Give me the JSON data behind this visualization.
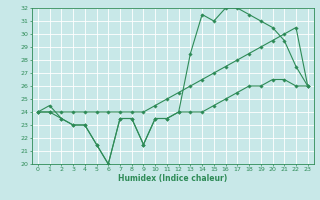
{
  "xlabel": "Humidex (Indice chaleur)",
  "x": [
    0,
    1,
    2,
    3,
    4,
    5,
    6,
    7,
    8,
    9,
    10,
    11,
    12,
    13,
    14,
    15,
    16,
    17,
    18,
    19,
    20,
    21,
    22,
    23
  ],
  "line1": [
    24.0,
    24.5,
    23.5,
    23.0,
    23.0,
    21.5,
    20.0,
    23.5,
    23.5,
    21.5,
    23.5,
    23.5,
    24.0,
    28.5,
    31.5,
    31.0,
    32.0,
    32.0,
    31.5,
    31.0,
    30.5,
    29.5,
    27.5,
    26.0
  ],
  "line2": [
    24.0,
    24.0,
    24.0,
    24.0,
    24.0,
    24.0,
    24.0,
    24.0,
    24.0,
    24.0,
    24.5,
    25.0,
    25.5,
    26.0,
    26.5,
    27.0,
    27.5,
    28.0,
    28.5,
    29.0,
    29.5,
    30.0,
    30.5,
    26.0
  ],
  "line3": [
    24.0,
    24.0,
    23.5,
    23.0,
    23.0,
    21.5,
    20.0,
    23.5,
    23.5,
    21.5,
    23.5,
    23.5,
    24.0,
    24.0,
    24.0,
    24.5,
    25.0,
    25.5,
    26.0,
    26.0,
    26.5,
    26.5,
    26.0,
    26.0
  ],
  "color": "#2e8b57",
  "bg_color": "#c8e8e8",
  "grid_color": "#ffffff",
  "ylim": [
    20,
    32
  ],
  "xlim": [
    -0.5,
    23.5
  ],
  "yticks": [
    20,
    21,
    22,
    23,
    24,
    25,
    26,
    27,
    28,
    29,
    30,
    31,
    32
  ],
  "xticks": [
    0,
    1,
    2,
    3,
    4,
    5,
    6,
    7,
    8,
    9,
    10,
    11,
    12,
    13,
    14,
    15,
    16,
    17,
    18,
    19,
    20,
    21,
    22,
    23
  ]
}
